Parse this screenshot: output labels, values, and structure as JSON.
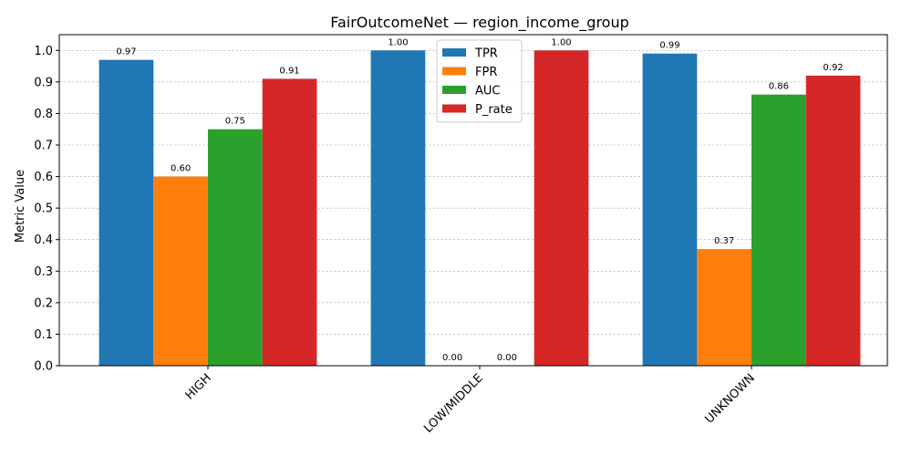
{
  "chart_data": {
    "type": "bar",
    "title": "FairOutcomeNet — region_income_group",
    "xlabel": "",
    "ylabel": "Metric Value",
    "categories": [
      "HIGH",
      "LOW/MIDDLE",
      "UNKNOWN"
    ],
    "series": [
      {
        "name": "TPR",
        "color": "#1f77b4",
        "values": [
          0.97,
          1.0,
          0.99
        ],
        "labels": [
          "0.97",
          "1.00",
          "0.99"
        ]
      },
      {
        "name": "FPR",
        "color": "#ff7f0e",
        "values": [
          0.6,
          0.0,
          0.37
        ],
        "labels": [
          "0.60",
          "0.00",
          "0.37"
        ]
      },
      {
        "name": "AUC",
        "color": "#2ca02c",
        "values": [
          0.75,
          0.0,
          0.86
        ],
        "labels": [
          "0.75",
          "0.00",
          "0.86"
        ]
      },
      {
        "name": "P_rate",
        "color": "#d62728",
        "values": [
          0.91,
          1.0,
          0.92
        ],
        "labels": [
          "0.91",
          "1.00",
          "0.92"
        ]
      }
    ],
    "ylim": [
      0,
      1.05
    ],
    "yticks": [
      "0.0",
      "0.1",
      "0.2",
      "0.3",
      "0.4",
      "0.5",
      "0.6",
      "0.7",
      "0.8",
      "0.9",
      "1.0"
    ],
    "grid": "y-dashed",
    "legend_position": "top-center"
  }
}
